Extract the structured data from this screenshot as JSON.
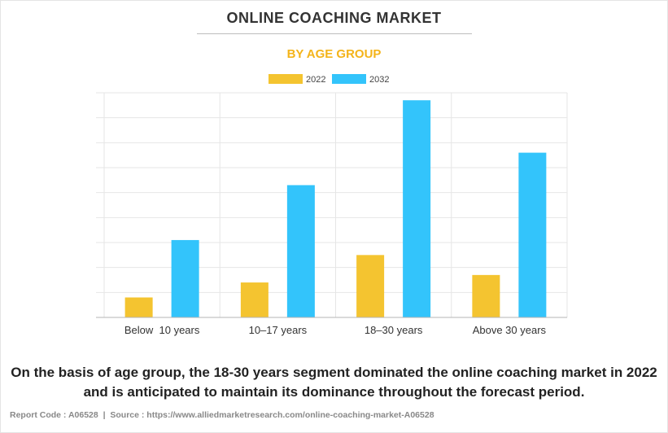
{
  "header": {
    "title": "ONLINE COACHING MARKET",
    "subtitle": "BY AGE GROUP"
  },
  "colors": {
    "series_2022": "#f4c430",
    "series_2032": "#33c4fb"
  },
  "chart_data": {
    "type": "bar",
    "categories": [
      "Below  10 years",
      "10–17 years",
      "18–30 years",
      "Above 30 years"
    ],
    "series": [
      {
        "name": "2022",
        "values": [
          8,
          14,
          25,
          17
        ]
      },
      {
        "name": "2032",
        "values": [
          31,
          53,
          87,
          66
        ]
      }
    ],
    "ylim": [
      0,
      90
    ],
    "grid": true,
    "legend": "top-center",
    "title": "ONLINE COACHING MARKET",
    "subtitle": "BY AGE GROUP",
    "xlabel": "",
    "ylabel": ""
  },
  "caption": "On the basis of age group, the 18-30 years segment dominated the online coaching market in 2022 and is anticipated to maintain its dominance throughout the forecast period.",
  "footer": {
    "report_code": "Report Code : A06528",
    "separator": "|",
    "source": "Source : https://www.alliedmarketresearch.com/online-coaching-market-A06528"
  }
}
